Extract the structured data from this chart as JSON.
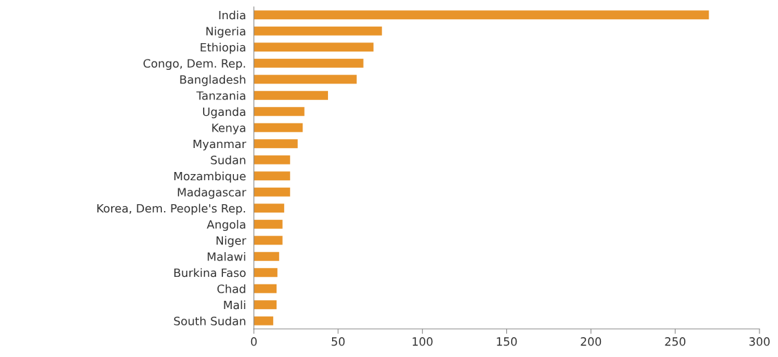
{
  "chart_data": {
    "type": "bar",
    "orientation": "horizontal",
    "categories": [
      "India",
      "Nigeria",
      "Ethiopia",
      "Congo, Dem. Rep.",
      "Bangladesh",
      "Tanzania",
      "Uganda",
      "Kenya",
      "Myanmar",
      "Sudan",
      "Mozambique",
      "Madagascar",
      "Korea, Dem. People's Rep.",
      "Angola",
      "Niger",
      "Malawi",
      "Burkina Faso",
      "Chad",
      "Mali",
      "South Sudan"
    ],
    "values": [
      270,
      76,
      71,
      65,
      61,
      44,
      30,
      29,
      26,
      21.5,
      21.5,
      21.5,
      18,
      17,
      17,
      15,
      14,
      13.5,
      13.5,
      11.5
    ],
    "color": "#e8942a",
    "xlim": [
      0,
      300
    ],
    "xticks": [
      0,
      50,
      100,
      150,
      200,
      250,
      300
    ],
    "grid": false
  }
}
